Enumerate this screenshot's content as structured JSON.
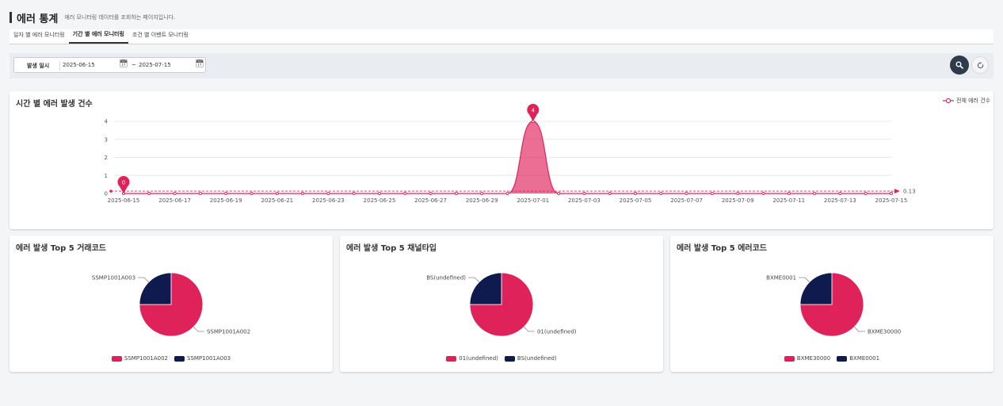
{
  "header": {
    "title": "에러 통계",
    "subtitle": "에러 모니터링 데이터를 조회하는 페이지입니다."
  },
  "tabs": [
    {
      "label": "일자 별 에러 모니터링",
      "active": false
    },
    {
      "label": "기간 별 에러 모니터링",
      "active": true
    },
    {
      "label": "조건 별 이벤트 모니터링",
      "active": false
    }
  ],
  "filter": {
    "label": "발생 일시",
    "from": "2025-06-15",
    "separator": "~",
    "to": "2025-07-15",
    "search_icon": "search-icon",
    "reset_icon": "refresh-icon"
  },
  "colors": {
    "accent": "#e0225a",
    "navy": "#0f1a4e",
    "dark_button": "#2f3a4a"
  },
  "line_chart": {
    "title": "시간 별 에러 발생 건수",
    "legend": "전체 에러 건수",
    "avg_label": "0.13",
    "peak_label": "4",
    "min_label": "0"
  },
  "chart_data": [
    {
      "type": "area",
      "title": "시간 별 에러 발생 건수",
      "x": [
        "2025-06-15",
        "2025-06-16",
        "2025-06-17",
        "2025-06-18",
        "2025-06-19",
        "2025-06-20",
        "2025-06-21",
        "2025-06-22",
        "2025-06-23",
        "2025-06-24",
        "2025-06-25",
        "2025-06-26",
        "2025-06-27",
        "2025-06-28",
        "2025-06-29",
        "2025-06-30",
        "2025-07-01",
        "2025-07-02",
        "2025-07-03",
        "2025-07-04",
        "2025-07-05",
        "2025-07-06",
        "2025-07-07",
        "2025-07-08",
        "2025-07-09",
        "2025-07-10",
        "2025-07-11",
        "2025-07-12",
        "2025-07-13",
        "2025-07-14",
        "2025-07-15"
      ],
      "x_tick_labels": [
        "2025-06-15",
        "2025-06-17",
        "2025-06-19",
        "2025-06-21",
        "2025-06-23",
        "2025-06-25",
        "2025-06-27",
        "2025-06-29",
        "2025-07-01",
        "2025-07-03",
        "2025-07-05",
        "2025-07-07",
        "2025-07-09",
        "2025-07-11",
        "2025-07-13",
        "2025-07-15"
      ],
      "series": [
        {
          "name": "전체 에러 건수",
          "values": [
            0,
            0,
            0,
            0,
            0,
            0,
            0,
            0,
            0,
            0,
            0,
            0,
            0,
            0,
            0,
            0,
            4,
            0,
            0,
            0,
            0,
            0,
            0,
            0,
            0,
            0,
            0,
            0,
            0,
            0,
            0
          ]
        }
      ],
      "ylim": [
        0,
        4
      ],
      "y_ticks": [
        0,
        1,
        2,
        3,
        4
      ],
      "average_line": 0.13,
      "max_marker": {
        "x": "2025-07-01",
        "y": 4
      },
      "min_marker": {
        "x": "2025-06-15",
        "y": 0
      },
      "grid": true,
      "legend_position": "top-right"
    },
    {
      "type": "pie",
      "title": "에러 발생 Top 5 거래코드",
      "labels": [
        "SSMP1001A002",
        "SSMP1001A003"
      ],
      "values": [
        3,
        1
      ],
      "colors": [
        "#e0225a",
        "#0f1a4e"
      ],
      "legend_position": "bottom"
    },
    {
      "type": "pie",
      "title": "에러 발생 Top 5 채널타입",
      "labels": [
        "01(undefined)",
        "BS(undefined)"
      ],
      "values": [
        3,
        1
      ],
      "colors": [
        "#e0225a",
        "#0f1a4e"
      ],
      "legend_position": "bottom"
    },
    {
      "type": "pie",
      "title": "에러 발생 Top 5 에러코드",
      "labels": [
        "BXME30000",
        "BXME0001"
      ],
      "values": [
        3,
        1
      ],
      "colors": [
        "#e0225a",
        "#0f1a4e"
      ],
      "legend_position": "bottom"
    }
  ]
}
